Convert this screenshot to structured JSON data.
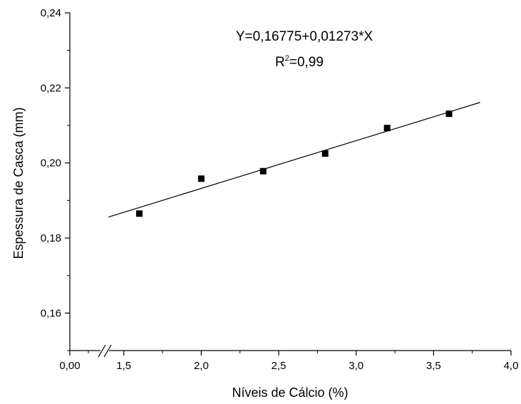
{
  "chart_data": {
    "type": "scatter",
    "xlabel": "Níveis de Cálcio (%)",
    "ylabel": "Espessura de Casca (mm)",
    "xlim": [
      0.0,
      4.0
    ],
    "ylim": [
      0.15,
      0.24
    ],
    "axis_break": "between 0,00 and 1,5 on x-axis",
    "x_ticks": [
      {
        "value": 0.0,
        "label": "0,00"
      },
      {
        "value": 1.5,
        "label": "1,5"
      },
      {
        "value": 2.0,
        "label": "2,0"
      },
      {
        "value": 2.5,
        "label": "2,5"
      },
      {
        "value": 3.0,
        "label": "3,0"
      },
      {
        "value": 3.5,
        "label": "3,5"
      },
      {
        "value": 4.0,
        "label": "4,0"
      }
    ],
    "y_ticks": [
      {
        "value": 0.16,
        "label": "0,16"
      },
      {
        "value": 0.18,
        "label": "0,18"
      },
      {
        "value": 0.2,
        "label": "0,20"
      },
      {
        "value": 0.22,
        "label": "0,22"
      },
      {
        "value": 0.24,
        "label": "0,24"
      }
    ],
    "series": [
      {
        "x": [
          1.6,
          2.0,
          2.4,
          2.8,
          3.2,
          3.6
        ],
        "y": [
          0.1865,
          0.1958,
          0.1978,
          0.2025,
          0.2093,
          0.2131
        ],
        "marker": "square",
        "color": "#000000"
      }
    ],
    "fit_line": {
      "intercept": 0.16775,
      "slope": 0.01273,
      "x_range": [
        1.4,
        3.8
      ],
      "color": "#000000"
    },
    "annotations": {
      "equation": "Y=0,16775+0,01273*X",
      "r2_prefix": "R",
      "r2_sup": "2",
      "r2_value": "=0,99"
    },
    "grid": false,
    "legend": "none"
  }
}
